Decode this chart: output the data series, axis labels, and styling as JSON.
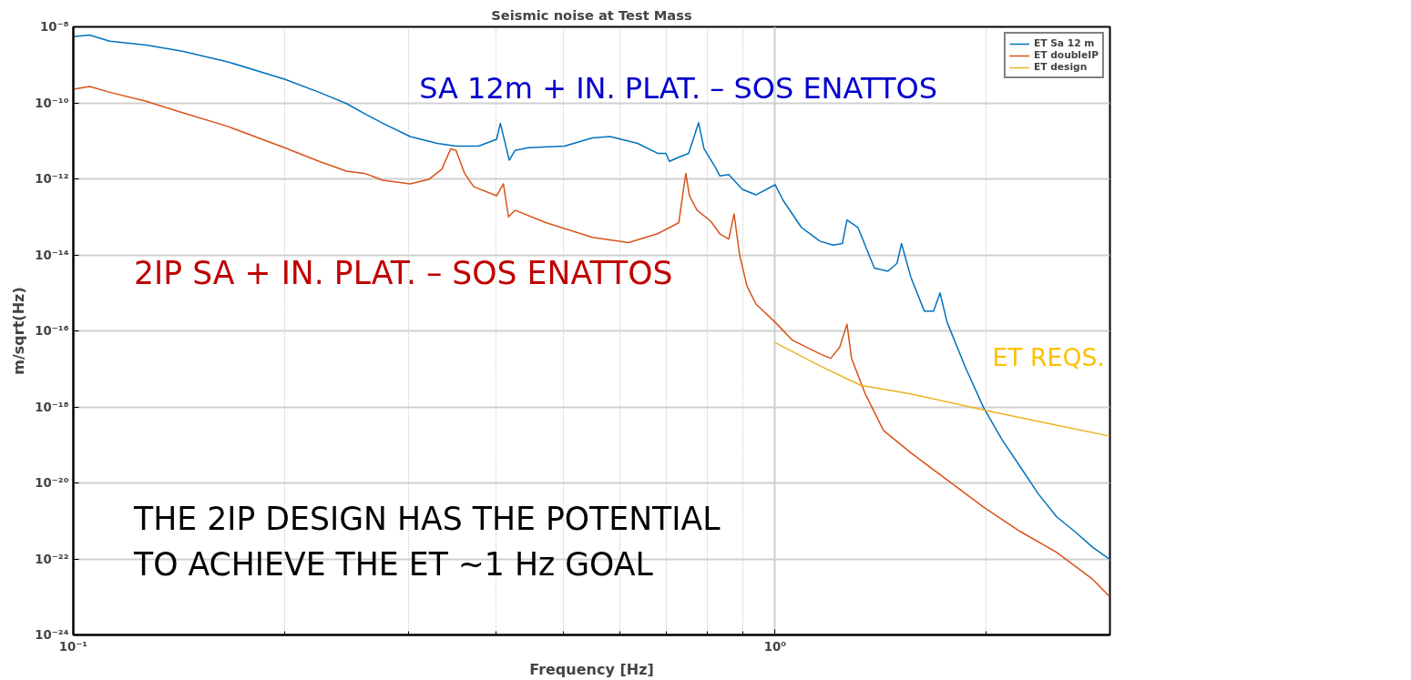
{
  "chart_data": {
    "type": "line",
    "title": "Seismic noise at Test Mass",
    "xlabel": "Frequency [Hz]",
    "ylabel": "m/sqrt(Hz)",
    "log": "xy",
    "grid": true,
    "legend": "top right",
    "xlim": [
      0.1,
      3
    ],
    "ylim": [
      1e-24,
      1e-08
    ],
    "xticks": [
      {
        "value": 0.1,
        "label": "10⁻¹"
      },
      {
        "value": 0.2,
        "label": null
      },
      {
        "value": 0.3,
        "label": null
      },
      {
        "value": 0.4,
        "label": null
      },
      {
        "value": 0.5,
        "label": null
      },
      {
        "value": 0.6,
        "label": null
      },
      {
        "value": 0.7,
        "label": null
      },
      {
        "value": 0.8,
        "label": null
      },
      {
        "value": 0.9,
        "label": null
      },
      {
        "value": 1,
        "label": "10⁰"
      },
      {
        "value": 2,
        "label": null
      }
    ],
    "yticks": [
      {
        "value": 1e-24,
        "label": "10⁻²⁴"
      },
      {
        "value": 1e-22,
        "label": "10⁻²²"
      },
      {
        "value": 1e-20,
        "label": "10⁻²⁰"
      },
      {
        "value": 1e-18,
        "label": "10⁻¹⁸"
      },
      {
        "value": 1e-16,
        "label": "10⁻¹⁶"
      },
      {
        "value": 1e-14,
        "label": "10⁻¹⁴"
      },
      {
        "value": 1e-12,
        "label": "10⁻¹²"
      },
      {
        "value": 1e-10,
        "label": "10⁻¹⁰"
      },
      {
        "value": 1e-08,
        "label": "10⁻⁸"
      }
    ],
    "series": [
      {
        "name": "ET Sa 12 m",
        "color": "#0072bd",
        "x": [
          0.1,
          0.1055,
          0.1127,
          0.127,
          0.143,
          0.166,
          0.2,
          0.224,
          0.245,
          0.26,
          0.276,
          0.302,
          0.33,
          0.351,
          0.378,
          0.401,
          0.406,
          0.418,
          0.426,
          0.445,
          0.501,
          0.549,
          0.582,
          0.637,
          0.68,
          0.699,
          0.707,
          0.726,
          0.753,
          0.778,
          0.792,
          0.821,
          0.834,
          0.859,
          0.898,
          0.939,
          1.0,
          1.027,
          1.09,
          1.158,
          1.21,
          1.247,
          1.266,
          1.312,
          1.385,
          1.448,
          1.492,
          1.514,
          1.561,
          1.632,
          1.682,
          1.718,
          1.758,
          1.867,
          1.982,
          2.104,
          2.234,
          2.371,
          2.517,
          2.672,
          2.836,
          3.0
        ],
        "values": [
          5.5e-09,
          6.1e-09,
          4.2e-09,
          3.3e-09,
          2.3e-09,
          1.2e-09,
          4.2e-10,
          1.9e-10,
          9.6e-11,
          5.2e-11,
          2.9e-11,
          1.3e-11,
          8.6e-12,
          7.3e-12,
          7.3e-12,
          1.1e-11,
          2.9e-11,
          3.1e-12,
          5.6e-12,
          6.6e-12,
          7.3e-12,
          1.2e-11,
          1.3e-11,
          8.6e-12,
          4.7e-12,
          4.7e-12,
          2.9e-12,
          3.6e-12,
          4.7e-12,
          3e-11,
          6.2e-12,
          2.1e-12,
          1.2e-12,
          1.3e-12,
          5.3e-13,
          3.8e-13,
          7e-13,
          2.7e-13,
          5.3e-14,
          2.3e-14,
          1.8e-14,
          2e-14,
          8.3e-14,
          5.3e-14,
          4.5e-15,
          3.7e-15,
          6e-15,
          2e-14,
          2.6e-15,
          3.3e-16,
          3.3e-16,
          1e-15,
          1.7e-16,
          1.1e-17,
          9.5e-19,
          1.4e-19,
          2.7e-20,
          5.2e-21,
          1.3e-21,
          5.3e-22,
          2e-22,
          9.7e-23
        ]
      },
      {
        "name": "ET doubleIP",
        "color": "#d95319",
        "x": [
          0.1,
          0.1055,
          0.1127,
          0.127,
          0.143,
          0.166,
          0.2,
          0.224,
          0.245,
          0.26,
          0.276,
          0.302,
          0.321,
          0.335,
          0.345,
          0.351,
          0.361,
          0.372,
          0.401,
          0.41,
          0.417,
          0.426,
          0.472,
          0.549,
          0.618,
          0.68,
          0.729,
          0.746,
          0.755,
          0.774,
          0.809,
          0.834,
          0.859,
          0.874,
          0.89,
          0.912,
          0.939,
          1.0,
          1.058,
          1.158,
          1.2,
          1.236,
          1.266,
          1.285,
          1.344,
          1.427,
          1.561,
          1.758,
          1.982,
          2.234,
          2.517,
          2.836,
          3.0
        ],
        "values": [
          2.3e-10,
          2.7e-10,
          1.9e-10,
          1.1e-10,
          5.5e-11,
          2.4e-11,
          6.6e-12,
          2.9e-12,
          1.6e-12,
          1.4e-12,
          9.2e-13,
          7.4e-13,
          9.7e-13,
          1.8e-12,
          6.2e-12,
          5.6e-12,
          1.4e-12,
          6.2e-13,
          3.6e-13,
          7.4e-13,
          1e-13,
          1.5e-13,
          7e-14,
          2.9e-14,
          2.1e-14,
          3.6e-14,
          7e-14,
          1.4e-12,
          3.6e-13,
          1.5e-13,
          7.8e-14,
          3.6e-14,
          2.6e-14,
          1.2e-13,
          1e-14,
          1.5e-15,
          5.1e-16,
          1.7e-16,
          5.7e-17,
          2.5e-17,
          1.9e-17,
          3.7e-17,
          1.5e-16,
          1.9e-17,
          2.2e-18,
          2.4e-19,
          6.2e-20,
          1.2e-20,
          2.3e-21,
          5.3e-22,
          1.5e-22,
          2.9e-23,
          1e-23
        ]
      },
      {
        "name": "ET design",
        "color": "#edb120",
        "x": [
          1.0,
          1.158,
          1.324,
          1.561,
          2.0,
          2.443,
          3.0
        ],
        "values": [
          4.9e-17,
          1.2e-17,
          3.7e-18,
          2.2e-18,
          8e-19,
          3.7e-19,
          1.7e-19
        ]
      }
    ],
    "annotations": [
      "SA 12m + IN. PLAT. – SOS ENATTOS",
      "2IP SA + IN. PLAT. – SOS ENATTOS",
      "ET REQS.",
      "THE 2IP DESIGN HAS THE POTENTIAL\nTO ACHIEVE THE ET ~1 Hz GOAL"
    ]
  }
}
